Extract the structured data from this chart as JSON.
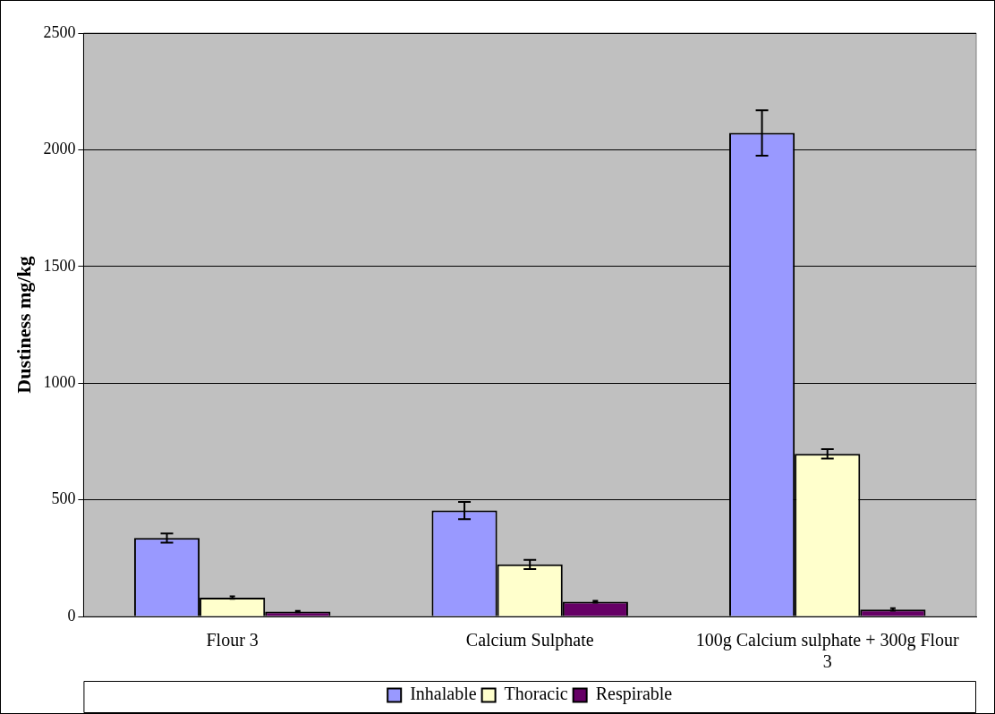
{
  "chart_data": {
    "type": "bar",
    "ylabel": "Dustiness mg/kg",
    "categories": [
      "Flour 3",
      "Calcium Sulphate",
      "100g Calcium sulphate + 300g Flour 3"
    ],
    "series": [
      {
        "name": "Inhalable",
        "color": "#9999ff",
        "values": [
          336,
          454,
          2072
        ],
        "errors": [
          20,
          37,
          97
        ]
      },
      {
        "name": "Thoracic",
        "color": "#ffffcc",
        "values": [
          81,
          223,
          697
        ],
        "errors": [
          5,
          20,
          20
        ]
      },
      {
        "name": "Respirable",
        "color": "#660066",
        "values": [
          21,
          63,
          30
        ],
        "errors": [
          3,
          4,
          5
        ]
      }
    ],
    "ylim": [
      0,
      2500
    ],
    "yticks": [
      0,
      500,
      1000,
      1500,
      2000,
      2500
    ],
    "grid": "y",
    "legend": "bottom"
  }
}
